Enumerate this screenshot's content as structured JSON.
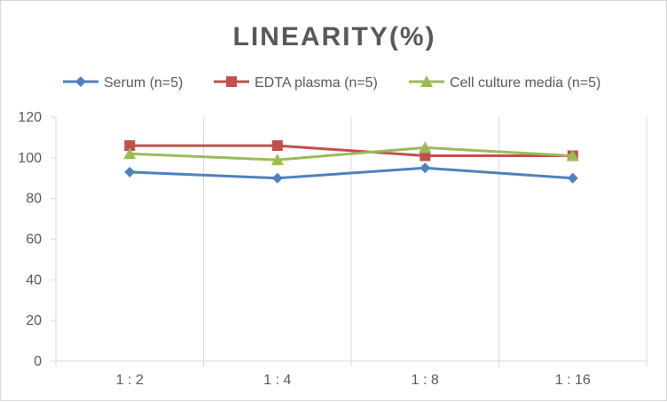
{
  "chart_data": {
    "type": "line",
    "title": "LINEARITY(%)",
    "categories": [
      "1:2",
      "1:4",
      "1:8",
      "1:16"
    ],
    "ylim": [
      0,
      120
    ],
    "yticks": [
      0,
      20,
      40,
      60,
      80,
      100,
      120
    ],
    "grid": "vertical",
    "legend_position": "top",
    "series": [
      {
        "name": "Serum (n=5)",
        "values": [
          93,
          90,
          95,
          90
        ],
        "color": "#4f81bd",
        "marker": "diamond"
      },
      {
        "name": "EDTA plasma (n=5)",
        "values": [
          106,
          106,
          101,
          101
        ],
        "color": "#c0504d",
        "marker": "square"
      },
      {
        "name": "Cell culture media (n=5)",
        "values": [
          102,
          99,
          105,
          101
        ],
        "color": "#9bbb59",
        "marker": "triangle"
      }
    ]
  }
}
